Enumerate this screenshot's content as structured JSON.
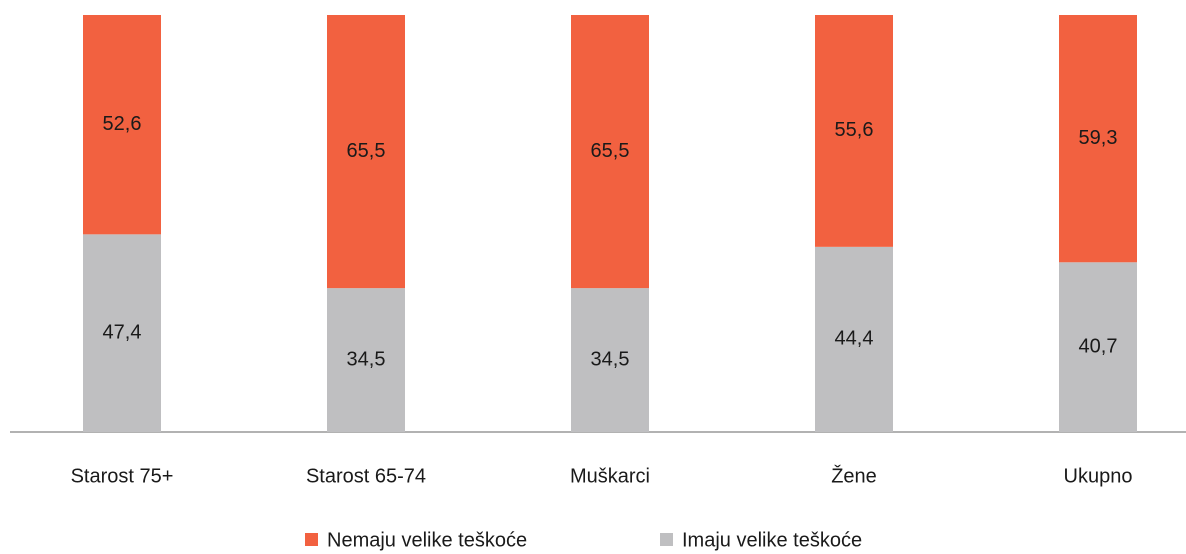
{
  "chart_data": {
    "type": "stacked_bar",
    "categories": [
      "Starost 75+",
      "Starost 65-74",
      "Muškarci",
      "Žene",
      "Ukupno"
    ],
    "series": [
      {
        "name": "Nemaju velike teškoće",
        "color": "#f26140",
        "values": [
          52.6,
          65.5,
          65.5,
          55.6,
          59.3
        ],
        "value_labels": [
          "52,6",
          "65,5",
          "65,5",
          "55,6",
          "59,3"
        ]
      },
      {
        "name": "Imaju velike teškoće",
        "color": "#bfbfc1",
        "values": [
          47.4,
          34.5,
          34.5,
          44.4,
          40.7
        ],
        "value_labels": [
          "47,4",
          "34,5",
          "34,5",
          "44,4",
          "40,7"
        ]
      }
    ],
    "ylim": [
      0,
      100
    ]
  }
}
